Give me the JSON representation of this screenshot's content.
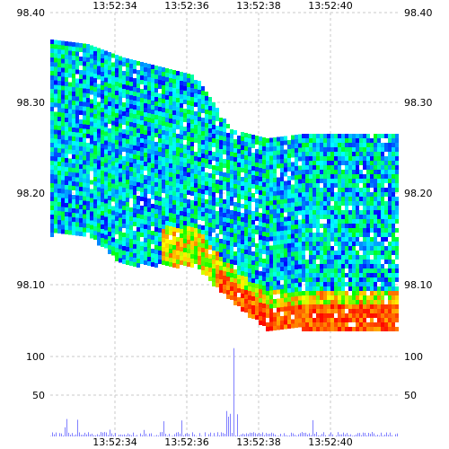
{
  "chart_data": [
    {
      "type": "heatmap",
      "title": "",
      "xlabel": "",
      "ylabel": "",
      "x_tick_labels": [
        "13:52:34",
        "13:52:36",
        "13:52:38",
        "13:52:40"
      ],
      "y_tick_labels": [
        "98.40",
        "98.30",
        "98.20",
        "98.10"
      ],
      "ylim": [
        98.03,
        98.4
      ],
      "grid": true,
      "colormap": [
        "#0000ff",
        "#0080ff",
        "#00ffff",
        "#00ff80",
        "#00ff00",
        "#ffff00",
        "#ff8000",
        "#ff0000"
      ],
      "note_colors": {
        "min_level": "#2a00ff",
        "max_level": "#ff0000"
      },
      "columns": [
        {
          "t": 0,
          "bid": 98.155,
          "ask": 98.37
        },
        {
          "t": 1,
          "bid": 98.155,
          "ask": 98.365
        },
        {
          "t": 2,
          "bid": 98.12,
          "ask": 98.35
        },
        {
          "t": 3,
          "bid": 98.12,
          "ask": 98.34
        },
        {
          "t": 4,
          "bid": 98.12,
          "ask": 98.33
        },
        {
          "t": 5,
          "bid": 98.08,
          "ask": 98.27
        },
        {
          "t": 6,
          "bid": 98.05,
          "ask": 98.26
        },
        {
          "t": 7,
          "bid": 98.05,
          "ask": 98.265
        }
      ]
    },
    {
      "type": "bar",
      "title": "",
      "ylabel": "",
      "y_tick_labels": [
        "100",
        "50"
      ],
      "ylim": [
        0,
        120
      ],
      "color": "#8080ff",
      "spike": {
        "t": 5.1,
        "value": 118
      }
    }
  ]
}
